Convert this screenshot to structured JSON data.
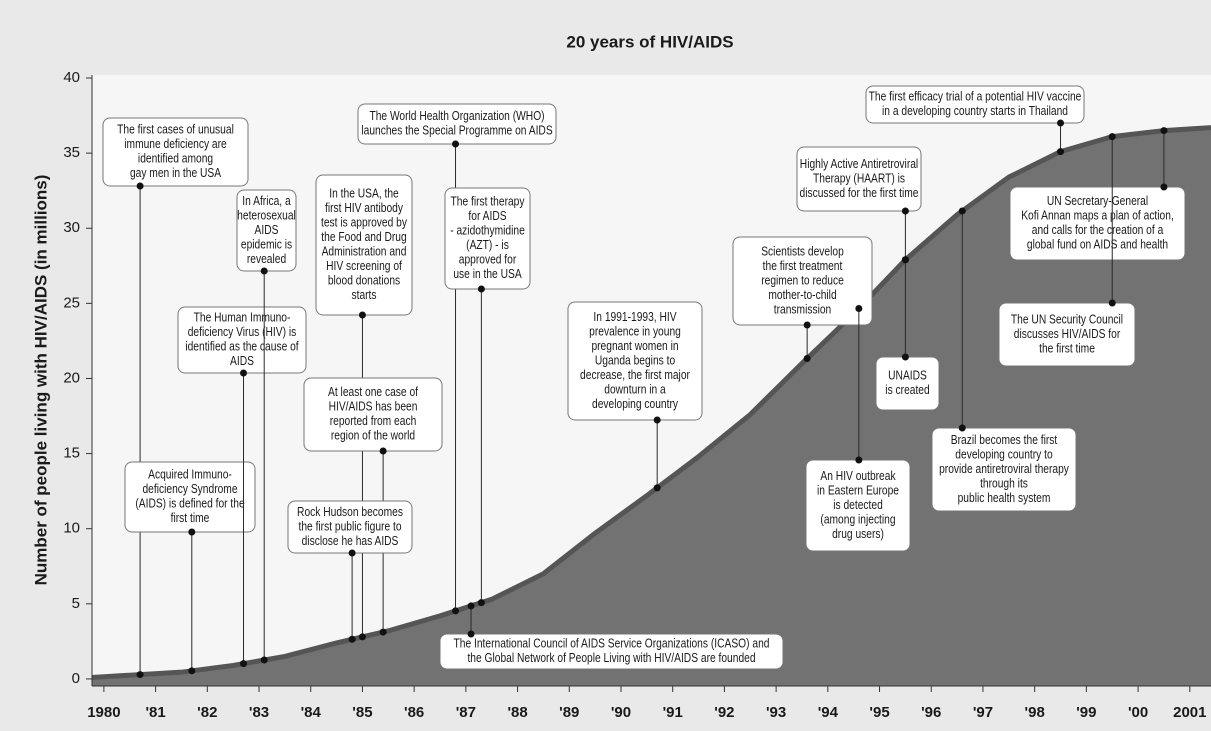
{
  "chart_data": {
    "type": "area",
    "title": "20 years of HIV/AIDS",
    "y_label": "Number of people living with HIV/AIDS (in millions)",
    "color": "#727272",
    "line_color": "#555555",
    "x": [
      1980.27,
      1981,
      1982,
      1983,
      1984,
      1985,
      1986,
      1987,
      1988,
      1989,
      1990,
      1991,
      1992,
      1993,
      1994,
      1995,
      1996,
      1997,
      1998,
      1999,
      2000,
      2001,
      2001.91
    ],
    "values": [
      0.1,
      0.25,
      0.45,
      0.9,
      1.5,
      2.4,
      3.2,
      4.2,
      5.3,
      7.0,
      9.7,
      12.2,
      14.8,
      17.6,
      21.0,
      24.3,
      27.9,
      30.9,
      33.4,
      35.1,
      36.1,
      36.5,
      36.7
    ],
    "xlim": [
      1980.27,
      2001.91
    ],
    "ylim": [
      -0.47,
      40.2
    ],
    "yticks": [
      0,
      5,
      10,
      15,
      20,
      25,
      30,
      35,
      40
    ],
    "xticks": [
      {
        "value": 1980.5,
        "label": "1980"
      },
      {
        "value": 1981.5,
        "label": "'81"
      },
      {
        "value": 1982.5,
        "label": "'82"
      },
      {
        "value": 1983.5,
        "label": "'83"
      },
      {
        "value": 1984.5,
        "label": "'84"
      },
      {
        "value": 1985.5,
        "label": "'85"
      },
      {
        "value": 1986.5,
        "label": "'86"
      },
      {
        "value": 1987.5,
        "label": "'87"
      },
      {
        "value": 1988.5,
        "label": "'88"
      },
      {
        "value": 1989.5,
        "label": "'89"
      },
      {
        "value": 1990.5,
        "label": "'90"
      },
      {
        "value": 1991.5,
        "label": "'91"
      },
      {
        "value": 1992.5,
        "label": "'92"
      },
      {
        "value": 1993.5,
        "label": "'93"
      },
      {
        "value": 1994.5,
        "label": "'94"
      },
      {
        "value": 1995.5,
        "label": "'95"
      },
      {
        "value": 1996.5,
        "label": "'96"
      },
      {
        "value": 1997.5,
        "label": "'97"
      },
      {
        "value": 1998.5,
        "label": "'98"
      },
      {
        "value": 1999.5,
        "label": "'99"
      },
      {
        "value": 2000.5,
        "label": "'00"
      },
      {
        "value": 2001.5,
        "label": "2001"
      }
    ],
    "annotations": [
      {
        "x": 1981.2,
        "lines": [
          "The first cases of unusual",
          "immune deficiency are",
          "identified among",
          "gay men in the USA"
        ]
      },
      {
        "x": 1982.2,
        "lines": [
          "Acquired Immuno-",
          "deficiency Syndrome",
          "(AIDS) is defined for the",
          "first time"
        ]
      },
      {
        "x": 1983.2,
        "lines": [
          "The Human Immuno-",
          "deficiency Virus (HIV) is",
          "identified as the cause of",
          "AIDS"
        ]
      },
      {
        "x": 1983.6,
        "lines": [
          "In Africa, a",
          "heterosexual",
          "AIDS",
          "epidemic is",
          "revealed"
        ]
      },
      {
        "x": 1985.5,
        "lines": [
          "In the USA, the",
          "first HIV antibody",
          "test is approved by",
          "the Food and Drug",
          "Administration and",
          "HIV screening of",
          "blood donations",
          "starts"
        ]
      },
      {
        "x": 1985.9,
        "lines": [
          "At least one case of",
          "HIV/AIDS has been",
          "reported from each",
          "region of the world"
        ]
      },
      {
        "x": 1985.3,
        "lines": [
          "Rock Hudson becomes",
          "the first public figure to",
          "disclose he has AIDS"
        ]
      },
      {
        "x": 1987.3,
        "lines": [
          "The World Health Organization (WHO)",
          "launches the Special Programme on AIDS"
        ]
      },
      {
        "x": 1987.8,
        "lines": [
          "The first therapy",
          "for AIDS",
          "- azidothymidine",
          "(AZT) -  is",
          "approved for",
          "use in the USA"
        ]
      },
      {
        "x": 1987.6,
        "lines": [
          "The International Council of AIDS Service Organizations (ICASO) and",
          "the Global Network of People Living with HIV/AIDS are founded"
        ]
      },
      {
        "x": 1991.2,
        "lines": [
          "In 1991-1993, HIV",
          "prevalence in young",
          "pregnant women in",
          "Uganda begins to",
          "decrease, the first major",
          "downturn in a",
          "developing country"
        ]
      },
      {
        "x": 1994.1,
        "lines": [
          "Scientists develop",
          "the first treatment",
          "regimen to reduce",
          "mother-to-child",
          "transmission"
        ]
      },
      {
        "x": 1995.1,
        "lines": [
          "An HIV outbreak",
          "in Eastern Europe",
          "is detected",
          "(among injecting",
          "drug users)"
        ]
      },
      {
        "x": 1996.0,
        "lines": [
          "Highly Active Antiretroviral",
          "Therapy (HAART) is",
          "discussed for the first time"
        ]
      },
      {
        "x": 1996.0,
        "lines": [
          "UNAIDS",
          "is created"
        ]
      },
      {
        "x": 1997.1,
        "lines": [
          "Brazil becomes the first",
          "developing country to",
          "provide antiretroviral therapy",
          "through its",
          "public health system"
        ]
      },
      {
        "x": 1999.0,
        "lines": [
          "The first efficacy trial of a potential HIV vaccine",
          "in a developing country starts in Thailand"
        ]
      },
      {
        "x": 2001.0,
        "lines": [
          "UN Secretary-General",
          "Kofi Annan maps a plan of action,",
          "and calls for the creation of a",
          "global fund on AIDS and health"
        ]
      },
      {
        "x": 2000.0,
        "lines": [
          "The UN Security Council",
          "discusses HIV/AIDS for",
          "the first time"
        ]
      }
    ]
  }
}
